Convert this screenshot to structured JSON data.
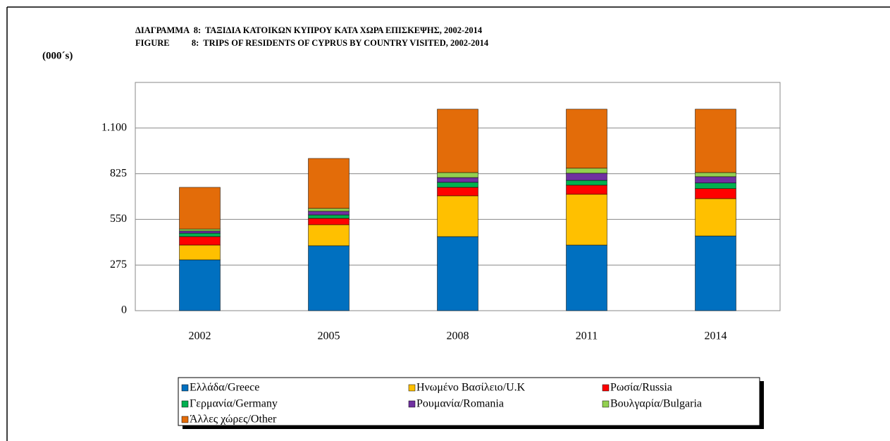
{
  "chart_data": {
    "type": "stacked_bar",
    "title": "ΔΙΑΓΡΑΜΜΑ  8:  ΤΑΞΙΔΙΑ ΚΑΤΟΙΚΩΝ ΚΥΠΡΟΥ ΚΑΤΑ ΧΩΡΑ ΕΠΙΣΚΕΨΗΣ, 2002-2014",
    "subtitle": "FIGURE          8:  TRIPS OF RESIDENTS OF CYPRUS BY COUNTRY VISITED, 2002-2014",
    "y_label": "(000´s)",
    "categories": [
      "2002",
      "2005",
      "2008",
      "2011",
      "2014"
    ],
    "series": [
      {
        "name": "Ελλάδα/Greece",
        "color": "#0070c0",
        "values": [
          306,
          391,
          446,
          395,
          450
        ]
      },
      {
        "name": "Ηνωμένο Βασίλειο/U.K",
        "color": "#ffc000",
        "values": [
          89,
          127,
          246,
          306,
          225
        ]
      },
      {
        "name": "Ρωσία/Russia",
        "color": "#ff0000",
        "values": [
          51,
          38,
          51,
          55,
          60
        ]
      },
      {
        "name": "Γερμανία/Germany",
        "color": "#00b050",
        "values": [
          21,
          21,
          30,
          29,
          34
        ]
      },
      {
        "name": "Ρουμανία/Romania",
        "color": "#7030a0",
        "values": [
          13,
          22,
          29,
          43,
          38
        ]
      },
      {
        "name": "Βουλγαρία/Bulgaria",
        "color": "#92d050",
        "values": [
          12,
          17,
          30,
          30,
          25
        ]
      },
      {
        "name": "Άλλες χώρες/Other",
        "color": "#e36c09",
        "values": [
          251,
          301,
          382,
          356,
          382
        ]
      }
    ],
    "ylim": [
      0,
      1375
    ],
    "yticks": [
      0,
      275,
      550,
      825,
      {
        "value": 1100,
        "label": "1.100"
      }
    ],
    "grid": true,
    "legend": "bottom"
  }
}
